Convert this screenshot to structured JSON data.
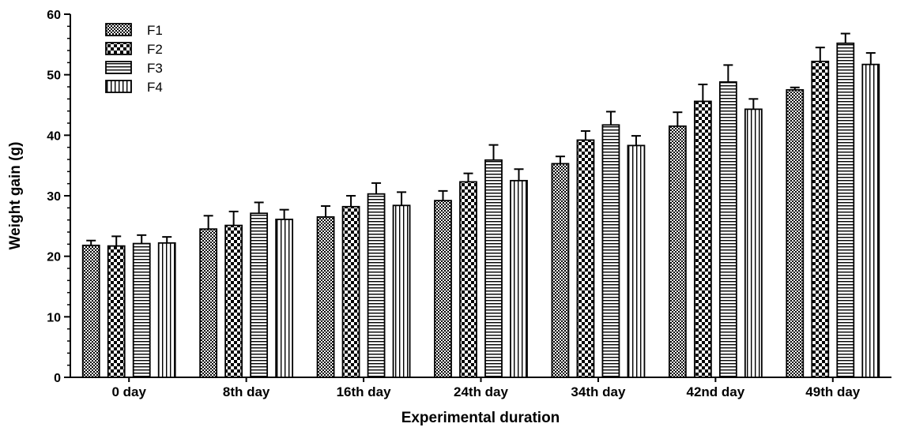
{
  "chart_data": {
    "type": "bar",
    "title": "",
    "xlabel": "Experimental duration",
    "ylabel": "Weight gain (g)",
    "ylim": [
      0,
      60
    ],
    "yticks": [
      0,
      10,
      20,
      30,
      40,
      50,
      60
    ],
    "grid": false,
    "legend_position": "top-left",
    "categories": [
      "0 day",
      "8th day",
      "16th day",
      "24th day",
      "34th day",
      "42nd day",
      "49th day"
    ],
    "series": [
      {
        "name": "F1",
        "pattern": "fine-checker",
        "values": [
          21.8,
          24.5,
          26.5,
          29.2,
          35.3,
          41.5,
          47.5
        ],
        "errors": [
          0.8,
          2.2,
          1.8,
          1.6,
          1.2,
          2.3,
          0.4
        ]
      },
      {
        "name": "F2",
        "pattern": "coarse-checker",
        "values": [
          21.7,
          25.1,
          28.2,
          32.3,
          39.2,
          45.6,
          52.2
        ],
        "errors": [
          1.6,
          2.3,
          1.8,
          1.4,
          1.5,
          2.8,
          2.3
        ]
      },
      {
        "name": "F3",
        "pattern": "horizontal-lines",
        "values": [
          22.1,
          27.1,
          30.3,
          35.9,
          41.7,
          48.8,
          55.2
        ],
        "errors": [
          1.4,
          1.8,
          1.8,
          2.5,
          2.2,
          2.8,
          1.6
        ]
      },
      {
        "name": "F4",
        "pattern": "vertical-lines",
        "values": [
          22.2,
          26.1,
          28.4,
          32.5,
          38.3,
          44.3,
          51.7
        ],
        "errors": [
          1.0,
          1.6,
          2.2,
          1.9,
          1.6,
          1.7,
          1.9
        ]
      }
    ]
  }
}
